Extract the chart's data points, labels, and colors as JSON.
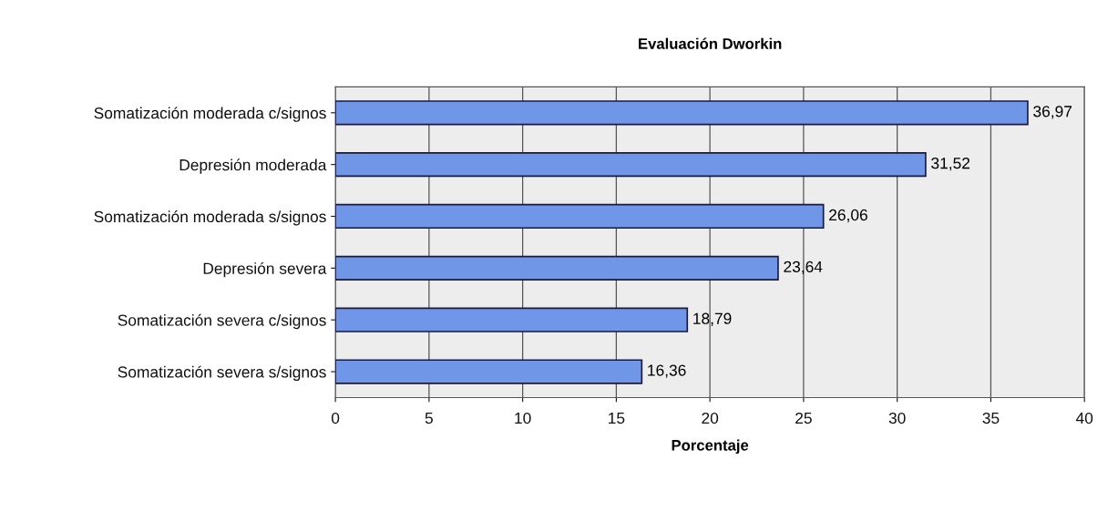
{
  "chart_data": {
    "type": "bar",
    "orientation": "horizontal",
    "title": "Evaluación Dworkin",
    "xlabel": "Porcentaje",
    "categories": [
      "Somatización moderada c/signos",
      "Depresión moderada",
      "Somatización moderada s/signos",
      "Depresión severa",
      "Somatización severa c/signos",
      "Somatización severa s/signos"
    ],
    "values": [
      36.97,
      31.52,
      26.06,
      23.64,
      18.79,
      16.36
    ],
    "value_labels": [
      "36,97",
      "31,52",
      "26,06",
      "23,64",
      "18,79",
      "16,36"
    ],
    "color": "#7096e8",
    "xlim": [
      0,
      40
    ],
    "xticks": [
      0,
      5,
      10,
      15,
      20,
      25,
      30,
      35,
      40
    ],
    "grid": "x",
    "legend": false
  }
}
